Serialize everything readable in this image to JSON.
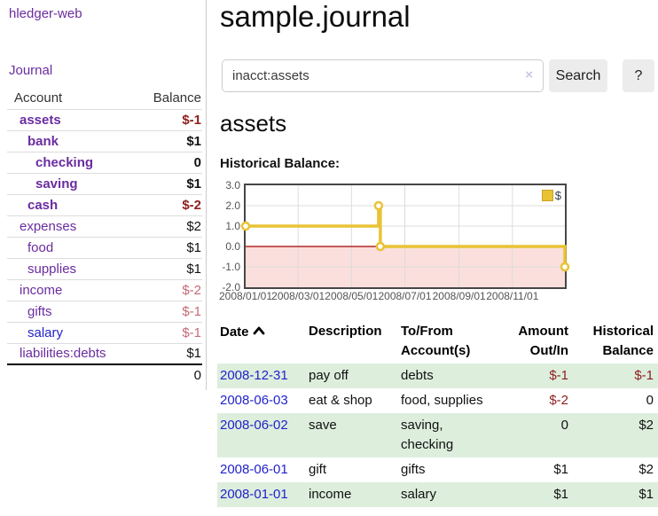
{
  "colors": {
    "purple": "#6a2ca0",
    "link_blue": "#2222cc",
    "neg_strong": "#8f1d1d",
    "neg_soft": "#c46b76",
    "row_green": "#ddeedd",
    "gold": "#e8c334"
  },
  "app": {
    "title": "hledger-web"
  },
  "nav": {
    "journal": "Journal"
  },
  "sidebar": {
    "columns": {
      "account": "Account",
      "balance": "Balance"
    },
    "accounts": [
      {
        "name": "assets",
        "depth": 1,
        "balance": "$-1",
        "bold": true,
        "balance_cls": "neg-strong",
        "link_color": "purple"
      },
      {
        "name": "bank",
        "depth": 2,
        "balance": "$1",
        "bold": true,
        "balance_cls": "",
        "link_color": "purple"
      },
      {
        "name": "checking",
        "depth": 3,
        "balance": "0",
        "bold": true,
        "balance_cls": "",
        "link_color": "purple"
      },
      {
        "name": "saving",
        "depth": 3,
        "balance": "$1",
        "bold": true,
        "balance_cls": "",
        "link_color": "purple"
      },
      {
        "name": "cash",
        "depth": 2,
        "balance": "$-2",
        "bold": true,
        "balance_cls": "neg-strong",
        "link_color": "purple"
      },
      {
        "name": "expenses",
        "depth": 1,
        "balance": "$2",
        "bold": false,
        "balance_cls": "",
        "link_color": "purple"
      },
      {
        "name": "food",
        "depth": 2,
        "balance": "$1",
        "bold": false,
        "balance_cls": "",
        "link_color": "purple"
      },
      {
        "name": "supplies",
        "depth": 2,
        "balance": "$1",
        "bold": false,
        "balance_cls": "",
        "link_color": "purple"
      },
      {
        "name": "income",
        "depth": 1,
        "balance": "$-2",
        "bold": false,
        "balance_cls": "neg-soft",
        "link_color": "purple"
      },
      {
        "name": "gifts",
        "depth": 2,
        "balance": "$-1",
        "bold": false,
        "balance_cls": "neg-soft",
        "link_color": "purple"
      },
      {
        "name": "salary",
        "depth": 2,
        "balance": "$-1",
        "bold": false,
        "balance_cls": "neg-soft",
        "link_color": "blue"
      },
      {
        "name": "liabilities:debts",
        "depth": 1,
        "balance": "$1",
        "bold": false,
        "balance_cls": "",
        "link_color": "purple"
      }
    ],
    "total": "0"
  },
  "header": {
    "title": "sample.journal"
  },
  "search": {
    "value": "inacct:assets",
    "clear_icon": "×",
    "button_label": "Search",
    "help_label": "?"
  },
  "account_page": {
    "heading": "assets",
    "chart_label": "Historical Balance:"
  },
  "chart_data": {
    "type": "line",
    "title": "Historical Balance",
    "ylim": [
      -2,
      3
    ],
    "x_domain_days": [
      0,
      365
    ],
    "yticks": [
      {
        "v": 3,
        "label": "3.0"
      },
      {
        "v": 2,
        "label": "2.0"
      },
      {
        "v": 1,
        "label": "1.0"
      },
      {
        "v": 0,
        "label": "0.0"
      },
      {
        "v": -1,
        "label": "-1.0"
      },
      {
        "v": -2,
        "label": "-2.0"
      }
    ],
    "xticks": [
      {
        "day": 0,
        "label": "2008/01/01"
      },
      {
        "day": 60,
        "label": "2008/03/01"
      },
      {
        "day": 121,
        "label": "2008/05/01"
      },
      {
        "day": 182,
        "label": "2008/07/01"
      },
      {
        "day": 244,
        "label": "2008/09/01"
      },
      {
        "day": 305,
        "label": "2008/11/01"
      }
    ],
    "grid": true,
    "grid_color": "#dcdcdc",
    "negative_fill": "#fbdfdd",
    "zero_line_color": "#a00000",
    "legend_position": "top-right",
    "series": [
      {
        "name": "$",
        "color": "#e8c334",
        "step_points": [
          [
            0,
            1
          ],
          [
            152,
            1
          ],
          [
            152,
            2
          ],
          [
            154,
            2
          ],
          [
            154,
            0
          ],
          [
            365,
            0
          ],
          [
            365,
            -1
          ]
        ],
        "markers": [
          [
            0,
            1
          ],
          [
            152,
            2
          ],
          [
            154,
            0
          ],
          [
            365,
            -1
          ]
        ]
      }
    ]
  },
  "register": {
    "headers": {
      "date": "Date",
      "sort_icon": "chevron-up",
      "description": "Description",
      "accounts": "To/From Account(s)",
      "amount": "Amount Out/In",
      "balance": "Historical Balance"
    },
    "rows": [
      {
        "date": "2008-12-31",
        "description": "pay off",
        "accounts": "debts",
        "amount": "$-1",
        "amount_cls": "neg-strong",
        "balance": "$-1",
        "balance_cls": "neg-strong"
      },
      {
        "date": "2008-06-03",
        "description": "eat & shop",
        "accounts": "food, supplies",
        "amount": "$-2",
        "amount_cls": "neg-strong",
        "balance": "0",
        "balance_cls": ""
      },
      {
        "date": "2008-06-02",
        "description": "save",
        "accounts": "saving, checking",
        "amount": "0",
        "amount_cls": "",
        "balance": "$2",
        "balance_cls": ""
      },
      {
        "date": "2008-06-01",
        "description": "gift",
        "accounts": "gifts",
        "amount": "$1",
        "amount_cls": "",
        "balance": "$2",
        "balance_cls": ""
      },
      {
        "date": "2008-01-01",
        "description": "income",
        "accounts": "salary",
        "amount": "$1",
        "amount_cls": "",
        "balance": "$1",
        "balance_cls": ""
      }
    ]
  }
}
